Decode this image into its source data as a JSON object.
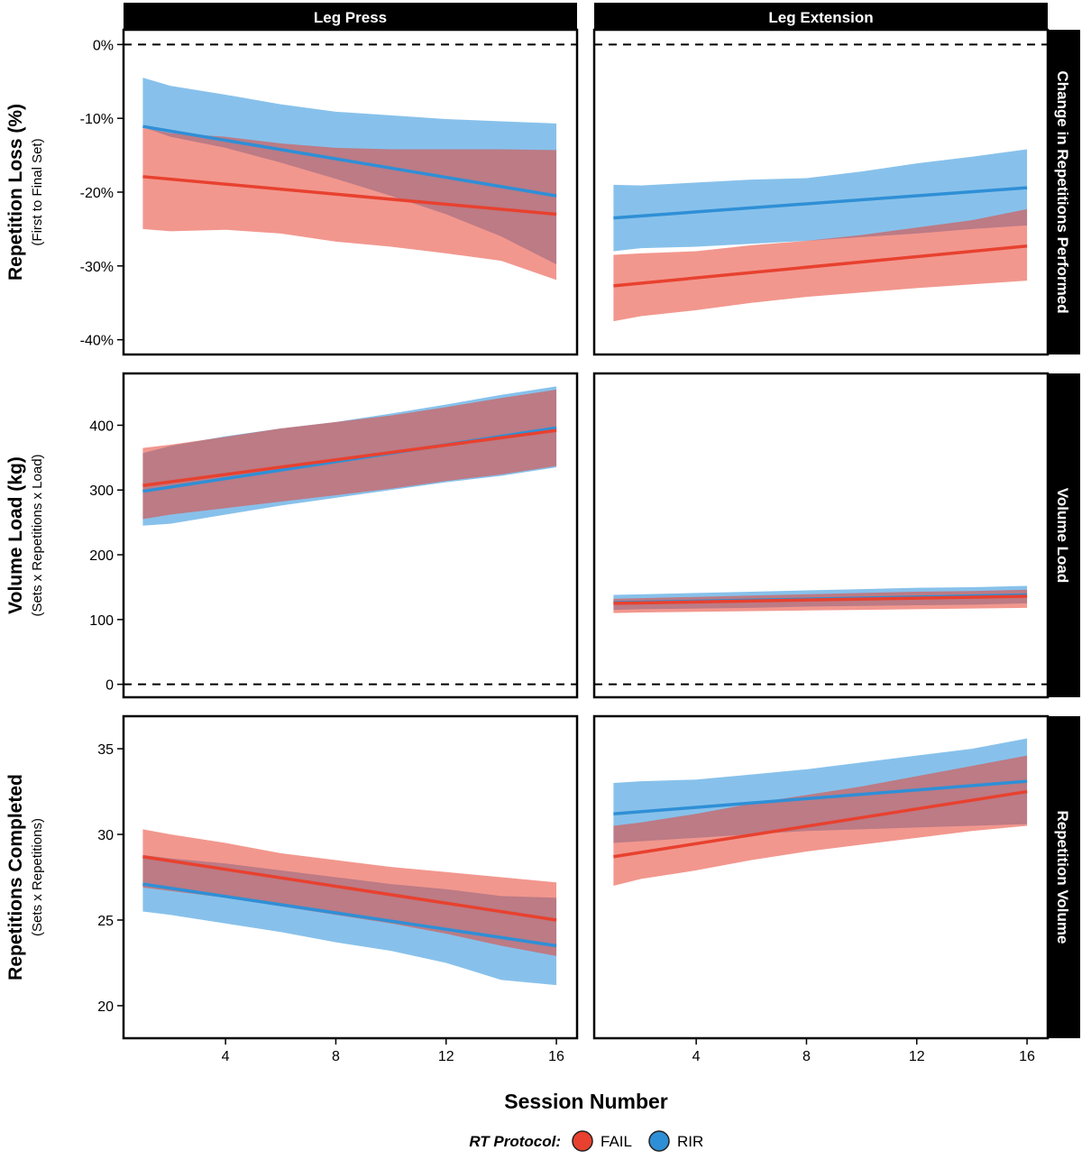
{
  "chart_data": {
    "type": "area",
    "facet_columns": [
      "Leg Press",
      "Leg Extension"
    ],
    "xlabel": "Session Number",
    "x_ticks": [
      4,
      8,
      12,
      16
    ],
    "x_range": [
      1,
      16
    ],
    "band_x": [
      1,
      2,
      4,
      6,
      8,
      10,
      12,
      14,
      16
    ],
    "legend": {
      "title": "RT Protocol:",
      "position": "bottom",
      "entries": [
        {
          "name": "FAIL",
          "color": "#e8412f"
        },
        {
          "name": "RIR",
          "color": "#2f8fd6"
        }
      ]
    },
    "rows": [
      {
        "strip": "Change in Repetitions Performed",
        "ylabel": "Repetition Loss (%)",
        "ylabel_sub": "(First to Final Set)",
        "y_ticks": [
          0,
          -10,
          -20,
          -30,
          -40
        ],
        "y_tick_labels": [
          "0%",
          "-10%",
          "-20%",
          "-30%",
          "-40%"
        ],
        "ylim": [
          -42,
          2
        ],
        "reference_line": 0,
        "panels": [
          {
            "series": [
              {
                "name": "RIR",
                "line": [
                  -11.1,
                  -20.5
                ],
                "upper": [
                  -4.5,
                  -5.6,
                  -6.8,
                  -8.1,
                  -9.1,
                  -9.6,
                  -10.1,
                  -10.4,
                  -10.7
                ],
                "lower": [
                  -11.2,
                  -12.5,
                  -14,
                  -16,
                  -18.2,
                  -20.5,
                  -23,
                  -26,
                  -29.8
                ]
              },
              {
                "name": "FAIL",
                "line": [
                  -17.9,
                  -23.0
                ],
                "upper": [
                  -11.3,
                  -12,
                  -12.5,
                  -13.4,
                  -14,
                  -14.2,
                  -14.2,
                  -14.2,
                  -14.3
                ],
                "lower": [
                  -25,
                  -25.3,
                  -25.1,
                  -25.6,
                  -26.7,
                  -27.4,
                  -28.3,
                  -29.3,
                  -31.9
                ]
              }
            ]
          },
          {
            "series": [
              {
                "name": "RIR",
                "line": [
                  -23.5,
                  -19.4
                ],
                "upper": [
                  -19,
                  -19.1,
                  -18.7,
                  -18.3,
                  -18.1,
                  -17.2,
                  -16.1,
                  -15.2,
                  -14.2
                ],
                "lower": [
                  -28,
                  -27.6,
                  -27.4,
                  -27,
                  -26.6,
                  -26.1,
                  -25.6,
                  -25,
                  -24.5
                ]
              },
              {
                "name": "FAIL",
                "line": [
                  -32.7,
                  -27.3
                ],
                "upper": [
                  -28.5,
                  -28.3,
                  -28,
                  -27.2,
                  -26.6,
                  -25.8,
                  -24.8,
                  -23.8,
                  -22.3
                ],
                "lower": [
                  -37.5,
                  -36.8,
                  -36,
                  -35,
                  -34.2,
                  -33.6,
                  -33,
                  -32.5,
                  -32
                ]
              }
            ]
          }
        ]
      },
      {
        "strip": "Volume Load",
        "ylabel": "Volume Load (kg)",
        "ylabel_sub": "(Sets x Repetitions x Load)",
        "y_ticks": [
          0,
          100,
          200,
          300,
          400
        ],
        "y_tick_labels": [
          "0",
          "100",
          "200",
          "300",
          "400"
        ],
        "ylim": [
          -20,
          480
        ],
        "reference_line": 0,
        "panels": [
          {
            "series": [
              {
                "name": "RIR",
                "line": [
                  298,
                  396
                ],
                "upper": [
                  357,
                  368,
                  383,
                  395,
                  405,
                  418,
                  432,
                  447,
                  460
                ],
                "lower": [
                  245,
                  248,
                  262,
                  276,
                  288,
                  300,
                  312,
                  322,
                  335
                ]
              },
              {
                "name": "FAIL",
                "line": [
                  307,
                  392
                ],
                "upper": [
                  365,
                  370,
                  382,
                  395,
                  405,
                  415,
                  428,
                  442,
                  455
                ],
                "lower": [
                  255,
                  262,
                  272,
                  282,
                  292,
                  302,
                  314,
                  324,
                  337
                ]
              }
            ]
          },
          {
            "series": [
              {
                "name": "RIR",
                "line": [
                  126,
                  138
                ],
                "upper": [
                  138,
                  139,
                  141,
                  143,
                  145,
                  147,
                  149,
                  150,
                  152
                ],
                "lower": [
                  115,
                  116,
                  117,
                  118,
                  120,
                  121,
                  122,
                  123,
                  125
                ]
              },
              {
                "name": "FAIL",
                "line": [
                  125,
                  136
                ],
                "upper": [
                  132,
                  133,
                  135,
                  137,
                  139,
                  141,
                  143,
                  144,
                  146
                ],
                "lower": [
                  110,
                  111,
                  112,
                  113,
                  114,
                  115,
                  116,
                  117,
                  118
                ]
              }
            ]
          }
        ]
      },
      {
        "strip": "Repetition Volume",
        "ylabel": "Repetitions Completed",
        "ylabel_sub": "(Sets x Repetitions)",
        "y_ticks": [
          20,
          25,
          30,
          35
        ],
        "y_tick_labels": [
          "20",
          "25",
          "30",
          "35"
        ],
        "ylim": [
          18.1,
          36.9
        ],
        "reference_line": null,
        "panels": [
          {
            "series": [
              {
                "name": "RIR",
                "line": [
                  27.1,
                  23.5
                ],
                "upper": [
                  28.8,
                  28.6,
                  28.3,
                  27.9,
                  27.5,
                  27.1,
                  26.8,
                  26.4,
                  26.3
                ],
                "lower": [
                  25.5,
                  25.3,
                  24.8,
                  24.3,
                  23.7,
                  23.2,
                  22.5,
                  21.5,
                  21.2
                ]
              },
              {
                "name": "FAIL",
                "line": [
                  28.7,
                  25.0
                ],
                "upper": [
                  30.3,
                  30,
                  29.5,
                  28.9,
                  28.5,
                  28.1,
                  27.8,
                  27.5,
                  27.2
                ],
                "lower": [
                  26.9,
                  26.7,
                  26.3,
                  25.8,
                  25.3,
                  24.8,
                  24.2,
                  23.5,
                  22.9
                ]
              }
            ]
          },
          {
            "series": [
              {
                "name": "RIR",
                "line": [
                  31.2,
                  33.1
                ],
                "upper": [
                  33,
                  33.1,
                  33.2,
                  33.5,
                  33.8,
                  34.2,
                  34.6,
                  35,
                  35.6
                ],
                "lower": [
                  29.5,
                  29.6,
                  29.8,
                  30,
                  30.2,
                  30.3,
                  30.4,
                  30.5,
                  30.6
                ]
              },
              {
                "name": "FAIL",
                "line": [
                  28.7,
                  32.5
                ],
                "upper": [
                  30.5,
                  30.7,
                  31.2,
                  31.8,
                  32.3,
                  32.8,
                  33.4,
                  34,
                  34.6
                ],
                "lower": [
                  27,
                  27.4,
                  27.9,
                  28.5,
                  29,
                  29.4,
                  29.8,
                  30.2,
                  30.5
                ]
              }
            ]
          }
        ]
      }
    ]
  }
}
